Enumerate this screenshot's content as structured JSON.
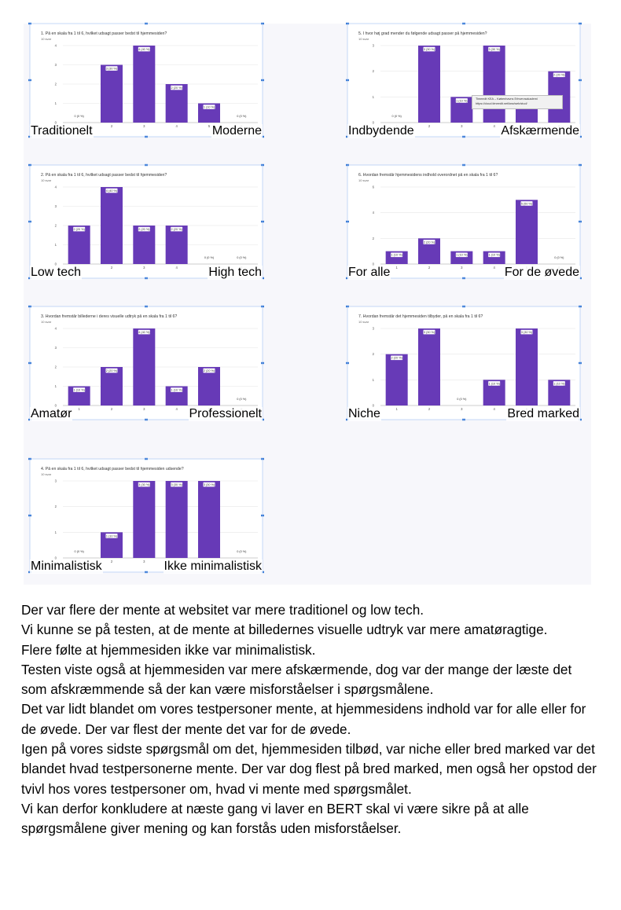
{
  "panels": [
    {
      "title": "1. På en skala fra 1 til 6, hvilket udsagt passer bedst til hjemmesiden?",
      "responses": "10 svar",
      "left_label": "Traditionelt",
      "right_label": "Moderne"
    },
    {
      "title": "2. På en skala fra 1 til 6, hvilket udsagt passer bedst til hjemmesiden?",
      "responses": "10 svar",
      "left_label": "Low tech",
      "right_label": "High tech"
    },
    {
      "title": "3. Hvordan fremstår billederne i deres visuelle udtryk på en skala fra 1 til 6?",
      "responses": "10 svar",
      "left_label": "Amatør",
      "right_label": "Professionelt"
    },
    {
      "title": "4. På en skala fra 1 til 6, hvilket udsagt passer bedst til hjemmesiden udsende?",
      "responses": "10 svar",
      "left_label": "Minimalistisk",
      "right_label": "Ikke minimalistisk"
    },
    {
      "title": "5. I hvor høj grad mender du følgende udsagt passer på hjemmesiden?",
      "responses": "10 svar",
      "left_label": "Indbydende",
      "right_label": "Afskærmende"
    },
    {
      "title": "6. Hvordan fremstår hjemmesidens indhold overordnet på en skala fra 1 til 6?",
      "responses": "10 svar",
      "left_label": "For alle",
      "right_label": "For de øvede"
    },
    {
      "title": "7. Hvordan fremstår det hjemmesiden tilbyder, på en skala fra 1 til 6?",
      "responses": "10 svar",
      "left_label": "Niche",
      "right_label": "Bred marked"
    }
  ],
  "tooltip": {
    "line1": "Timeedit KEA – Københavns Erhvervsakademi",
    "line2": "https://cloud.timeedit.net/kea/web/stud/"
  },
  "chart_data": [
    {
      "type": "bar",
      "categories": [
        "1",
        "2",
        "3",
        "4",
        "5",
        "6"
      ],
      "values": [
        0,
        3,
        4,
        2,
        1,
        0
      ],
      "data_labels": [
        "0 (0 %)",
        "3 (30 %)",
        "4 (40 %)",
        "2 (20 %)",
        "1 (10 %)",
        "0 (0 %)"
      ],
      "yticks": [
        "0",
        "1",
        "2",
        "3",
        "4"
      ],
      "ylim": [
        0,
        4
      ],
      "bar_color": "#673ab7"
    },
    {
      "type": "bar",
      "categories": [
        "1",
        "2",
        "3",
        "4",
        "5",
        "6"
      ],
      "values": [
        2,
        4,
        2,
        2,
        0,
        0
      ],
      "data_labels": [
        "2 (20 %)",
        "4 (40 %)",
        "2 (20 %)",
        "2 (20 %)",
        "0 (0 %)",
        "0 (0 %)"
      ],
      "yticks": [
        "0",
        "1",
        "2",
        "3",
        "4"
      ],
      "ylim": [
        0,
        4
      ],
      "bar_color": "#673ab7"
    },
    {
      "type": "bar",
      "categories": [
        "1",
        "2",
        "3",
        "4",
        "5",
        "6"
      ],
      "values": [
        1,
        2,
        4,
        1,
        2,
        0
      ],
      "data_labels": [
        "1 (10 %)",
        "2 (20 %)",
        "4 (40 %)",
        "1 (10 %)",
        "2 (20 %)",
        "0 (0 %)"
      ],
      "yticks": [
        "0",
        "1",
        "2",
        "3",
        "4"
      ],
      "ylim": [
        0,
        4
      ],
      "bar_color": "#673ab7"
    },
    {
      "type": "bar",
      "categories": [
        "1",
        "2",
        "3",
        "4",
        "5",
        "6"
      ],
      "values": [
        0,
        1,
        3,
        3,
        3,
        0
      ],
      "data_labels": [
        "0 (0 %)",
        "1 (10 %)",
        "3 (30 %)",
        "3 (30 %)",
        "3 (30 %)",
        "0 (0 %)"
      ],
      "yticks": [
        "0",
        "1",
        "2",
        "3"
      ],
      "ylim": [
        0,
        3
      ],
      "bar_color": "#673ab7"
    },
    {
      "type": "bar",
      "categories": [
        "1",
        "2",
        "3",
        "4",
        "5",
        "6"
      ],
      "values": [
        0,
        3,
        1,
        3,
        1,
        2
      ],
      "data_labels": [
        "0 (0 %)",
        "3 (30 %)",
        "1 (10 %)",
        "3 (30 %)",
        "1 (10 %)",
        "2 (20 %)"
      ],
      "yticks": [
        "0",
        "1",
        "2",
        "3"
      ],
      "ylim": [
        0,
        3
      ],
      "bar_color": "#673ab7"
    },
    {
      "type": "bar",
      "categories": [
        "1",
        "2",
        "3",
        "4",
        "5",
        "6"
      ],
      "values": [
        1,
        2,
        1,
        1,
        5,
        0
      ],
      "data_labels": [
        "1 (10 %)",
        "2 (20 %)",
        "1 (10 %)",
        "1 (10 %)",
        "5 (50 %)",
        "0 (0 %)"
      ],
      "yticks": [
        "0",
        "2",
        "4",
        "6"
      ],
      "ylim": [
        0,
        6
      ],
      "bar_color": "#673ab7"
    },
    {
      "type": "bar",
      "categories": [
        "1",
        "2",
        "3",
        "4",
        "5",
        "6"
      ],
      "values": [
        2,
        3,
        0,
        1,
        3,
        1
      ],
      "data_labels": [
        "2 (20 %)",
        "3 (30 %)",
        "0 (0 %)",
        "1 (10 %)",
        "3 (30 %)",
        "1 (10 %)"
      ],
      "yticks": [
        "0",
        "1",
        "2",
        "3"
      ],
      "ylim": [
        0,
        3
      ],
      "bar_color": "#673ab7"
    }
  ],
  "body_text": [
    "Der var flere der mente at websitet var mere traditionel og low tech.",
    "Vi kunne se på testen, at de mente at billedernes visuelle udtryk var mere amatøragtige.",
    "Flere følte at hjemmesiden ikke var minimalistisk.",
    "Testen viste også at hjemmesiden var mere afskærmende, dog var der mange der læste det som afskræmmende så der kan være misforståelser i spørgsmålene.",
    "Det var lidt blandet om vores testpersoner mente, at hjemmesidens indhold var for alle eller for de øvede. Der var flest der mente det var for de øvede.",
    "Igen på vores sidste spørgsmål om det, hjemmesiden tilbød, var niche eller bred marked var det blandet hvad testpersonerne mente. Der var dog flest på bred marked, men også her opstod der tvivl hos vores testpersoner om, hvad vi mente med spørgsmålet.",
    "Vi kan derfor konkludere at næste gang vi laver en BERT skal vi være sikre på at alle spørgsmålene giver mening og kan forstås uden misforståelser."
  ]
}
